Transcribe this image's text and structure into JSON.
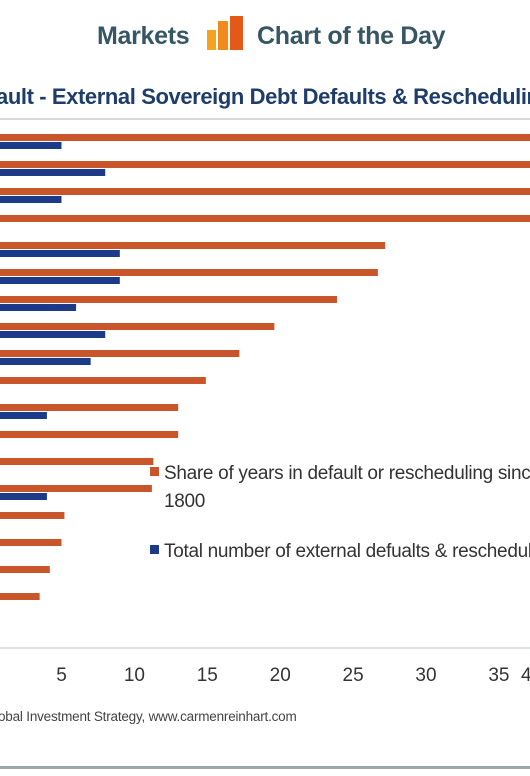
{
  "header": {
    "left_label": "Markets",
    "right_label": "Chart of the Day",
    "logo_icon": "bar-chart-logo-icon",
    "logo_colors": [
      "#f7a21c",
      "#e35a18"
    ]
  },
  "colors": {
    "series_share": "#c8562a",
    "series_count": "#1b3a87",
    "title": "#1f3d6b"
  },
  "chart_data": {
    "type": "bar",
    "orientation": "horizontal",
    "title": "ault - External Sovereign Debt Defaults & Rescheduling",
    "xlim": [
      0,
      40
    ],
    "xticks": [
      "5",
      "10",
      "15",
      "20",
      "25",
      "30",
      "35",
      "4"
    ],
    "grid": false,
    "legend_position": "right",
    "series": [
      {
        "name": "Share of years in default or rescheduling since 1800",
        "values": [
          41,
          40.5,
          39.2,
          37.3,
          27.2,
          26.7,
          23.9,
          19.6,
          17.2,
          14.9,
          13,
          13,
          11.3,
          11.2,
          5.2,
          5,
          4.2,
          3.5,
          0.2
        ]
      },
      {
        "name": "Total number of external defualts & reschedul",
        "values": [
          5,
          8,
          5,
          0,
          9,
          9,
          6,
          8,
          7,
          0,
          4,
          0,
          0,
          4,
          0,
          0,
          0,
          0,
          0
        ]
      }
    ],
    "source": "obal Investment Strategy, www.carmenreinhart.com"
  }
}
